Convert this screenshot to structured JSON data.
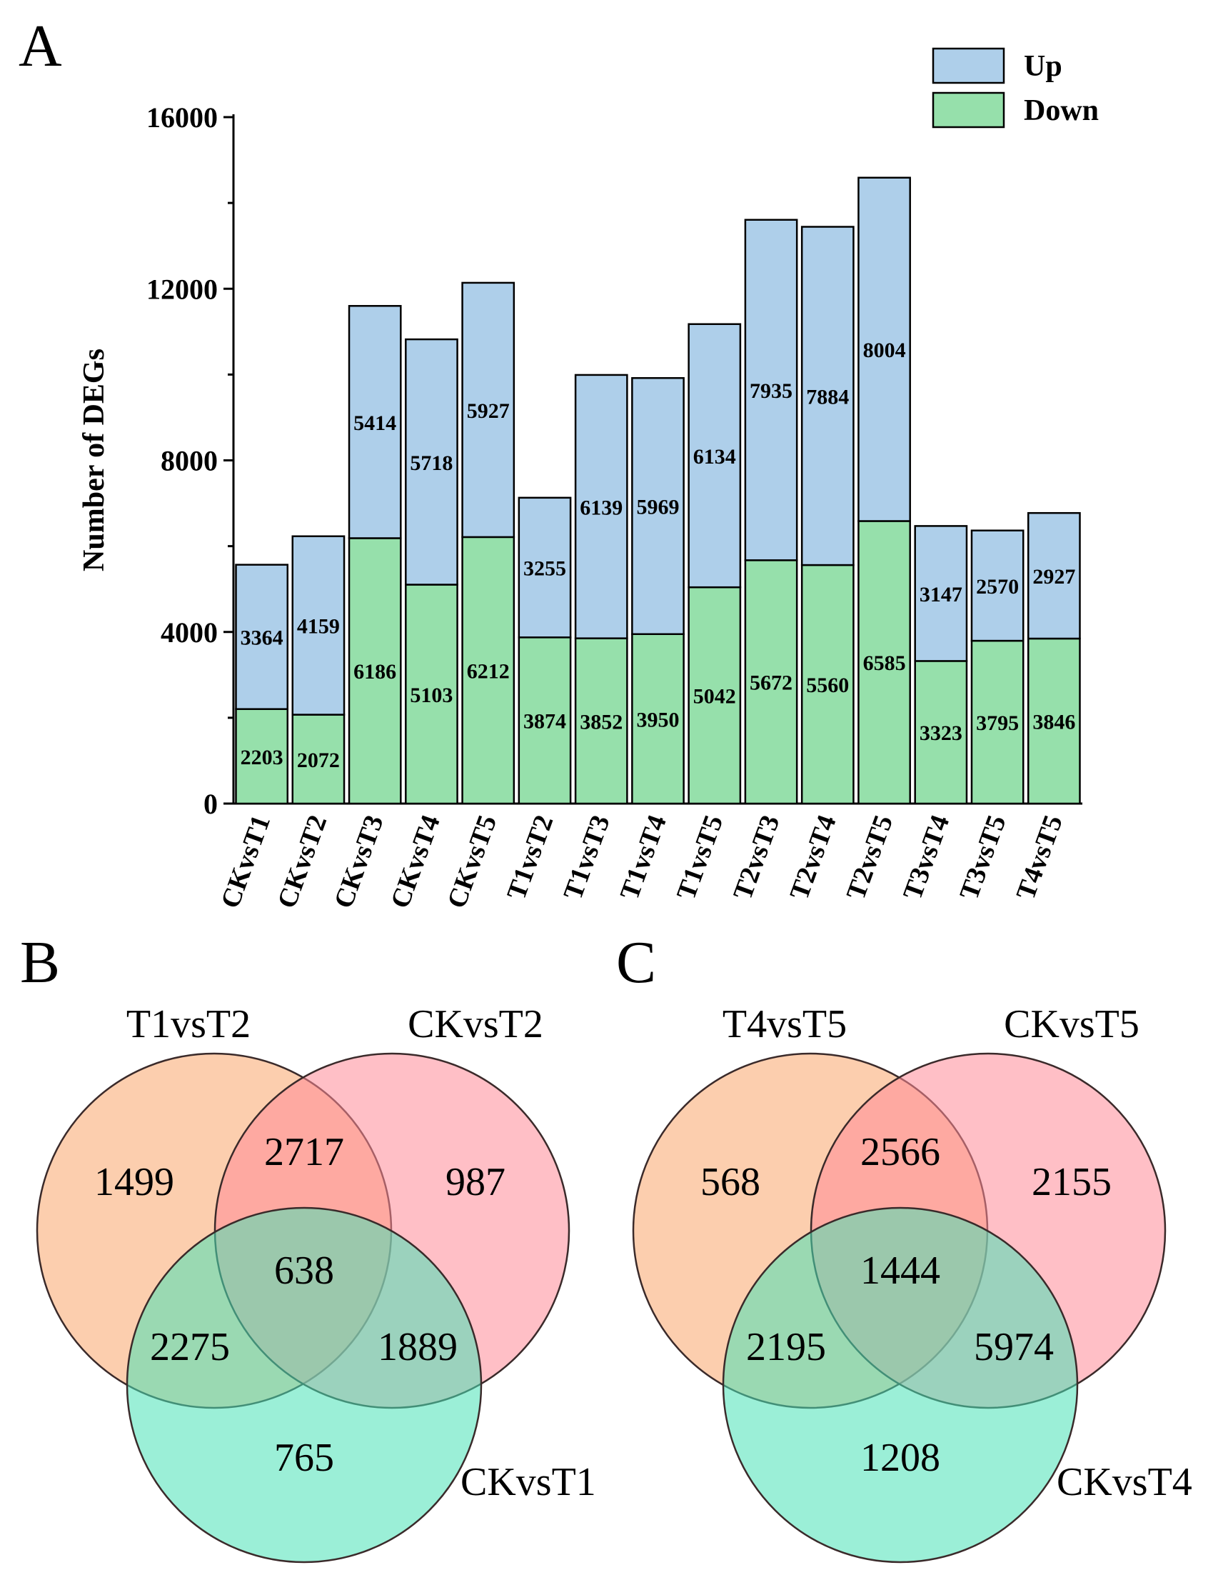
{
  "chart_data": [
    {
      "panel": "A",
      "type": "bar",
      "stacked": true,
      "title": "",
      "xlabel": "",
      "ylabel": "Number of DEGs",
      "ylim": [
        0,
        16000
      ],
      "yticks": [
        0,
        4000,
        8000,
        12000,
        16000
      ],
      "grid": false,
      "legend_position": "top-right",
      "categories": [
        "CKvsT1",
        "CKvsT2",
        "CKvsT3",
        "CKvsT4",
        "CKvsT5",
        "T1vsT2",
        "T1vsT3",
        "T1vsT4",
        "T1vsT5",
        "T2vsT3",
        "T2vsT4",
        "T2vsT5",
        "T3vsT4",
        "T3vsT5",
        "T4vsT5"
      ],
      "series": [
        {
          "name": "Down",
          "color": "#96e0ab",
          "values": [
            2203,
            2072,
            6186,
            5103,
            6212,
            3874,
            3852,
            3950,
            5042,
            5672,
            5560,
            6585,
            3323,
            3795,
            3846
          ]
        },
        {
          "name": "Up",
          "color": "#aecfea",
          "values": [
            3364,
            4159,
            5414,
            5718,
            5927,
            3255,
            6139,
            5969,
            6134,
            7935,
            7884,
            8004,
            3147,
            2570,
            2927
          ]
        }
      ]
    },
    {
      "panel": "B",
      "type": "venn",
      "sets": [
        {
          "name": "T1vsT2",
          "color": "#f9a66c"
        },
        {
          "name": "CKvsT2",
          "color": "#ff8a98"
        },
        {
          "name": "CKvsT1",
          "color": "#48e2b6"
        }
      ],
      "regions": {
        "only_1": 1499,
        "only_2": 987,
        "only_3": 765,
        "1_2": 2717,
        "1_3": 2275,
        "2_3": 1889,
        "1_2_3": 638
      }
    },
    {
      "panel": "C",
      "type": "venn",
      "sets": [
        {
          "name": "T4vsT5",
          "color": "#f9a66c"
        },
        {
          "name": "CKvsT5",
          "color": "#ff8a98"
        },
        {
          "name": "CKvsT4",
          "color": "#48e2b6"
        }
      ],
      "regions": {
        "only_1": 568,
        "only_2": 2155,
        "only_3": 1208,
        "1_2": 2566,
        "1_3": 2195,
        "2_3": 5974,
        "1_2_3": 1444
      }
    }
  ]
}
